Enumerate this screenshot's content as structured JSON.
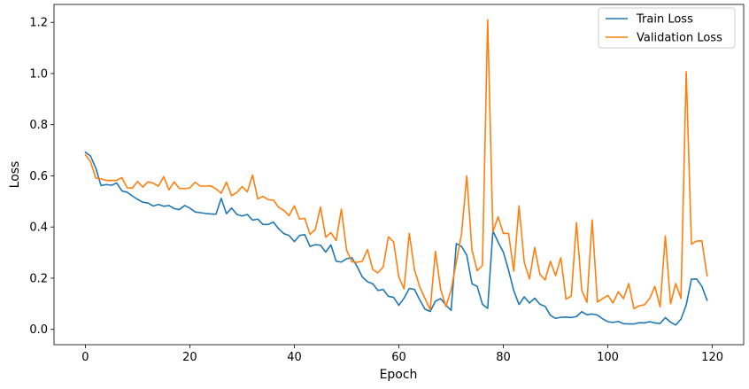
{
  "chart_data": {
    "type": "line",
    "xlabel": "Epoch",
    "ylabel": "Loss",
    "xlim": [
      -6,
      126
    ],
    "ylim": [
      -0.06,
      1.27
    ],
    "xticks": [
      0,
      20,
      40,
      60,
      80,
      100,
      120
    ],
    "yticks": [
      0.0,
      0.2,
      0.4,
      0.6,
      0.8,
      1.0,
      1.2
    ],
    "legend_position": "top-right",
    "grid": false,
    "series": [
      {
        "name": "Train Loss",
        "color": "#1f77b4",
        "values": [
          0.693,
          0.677,
          0.63,
          0.562,
          0.566,
          0.563,
          0.572,
          0.541,
          0.536,
          0.521,
          0.508,
          0.497,
          0.494,
          0.482,
          0.488,
          0.481,
          0.484,
          0.472,
          0.468,
          0.484,
          0.474,
          0.459,
          0.456,
          0.453,
          0.451,
          0.45,
          0.512,
          0.452,
          0.474,
          0.449,
          0.443,
          0.449,
          0.427,
          0.431,
          0.41,
          0.41,
          0.419,
          0.393,
          0.374,
          0.367,
          0.343,
          0.367,
          0.37,
          0.324,
          0.331,
          0.329,
          0.302,
          0.33,
          0.266,
          0.263,
          0.276,
          0.28,
          0.246,
          0.205,
          0.186,
          0.178,
          0.152,
          0.156,
          0.129,
          0.125,
          0.094,
          0.122,
          0.16,
          0.156,
          0.115,
          0.079,
          0.07,
          0.11,
          0.12,
          0.095,
          0.074,
          0.335,
          0.324,
          0.29,
          0.178,
          0.168,
          0.098,
          0.082,
          0.385,
          0.341,
          0.302,
          0.231,
          0.151,
          0.097,
          0.127,
          0.103,
          0.122,
          0.098,
          0.09,
          0.055,
          0.043,
          0.047,
          0.048,
          0.046,
          0.05,
          0.069,
          0.057,
          0.06,
          0.056,
          0.041,
          0.03,
          0.027,
          0.031,
          0.022,
          0.021,
          0.021,
          0.026,
          0.025,
          0.03,
          0.025,
          0.023,
          0.046,
          0.028,
          0.017,
          0.04,
          0.095,
          0.196,
          0.197,
          0.168,
          0.113
        ]
      },
      {
        "name": "Validation Loss",
        "color": "#ff7f0e",
        "values": [
          0.683,
          0.655,
          0.591,
          0.588,
          0.582,
          0.582,
          0.582,
          0.593,
          0.553,
          0.552,
          0.578,
          0.556,
          0.577,
          0.571,
          0.56,
          0.597,
          0.545,
          0.576,
          0.551,
          0.55,
          0.553,
          0.575,
          0.56,
          0.56,
          0.561,
          0.549,
          0.532,
          0.575,
          0.522,
          0.535,
          0.558,
          0.538,
          0.603,
          0.51,
          0.52,
          0.507,
          0.505,
          0.477,
          0.465,
          0.444,
          0.483,
          0.431,
          0.434,
          0.371,
          0.39,
          0.478,
          0.36,
          0.378,
          0.347,
          0.47,
          0.31,
          0.264,
          0.262,
          0.266,
          0.312,
          0.234,
          0.221,
          0.244,
          0.362,
          0.342,
          0.204,
          0.158,
          0.375,
          0.232,
          0.166,
          0.121,
          0.077,
          0.305,
          0.157,
          0.089,
          0.154,
          0.263,
          0.373,
          0.6,
          0.31,
          0.229,
          0.25,
          1.21,
          0.381,
          0.44,
          0.375,
          0.375,
          0.227,
          0.483,
          0.262,
          0.197,
          0.32,
          0.215,
          0.193,
          0.266,
          0.21,
          0.28,
          0.118,
          0.13,
          0.417,
          0.153,
          0.105,
          0.428,
          0.107,
          0.12,
          0.133,
          0.103,
          0.147,
          0.12,
          0.179,
          0.081,
          0.092,
          0.096,
          0.12,
          0.168,
          0.088,
          0.365,
          0.1,
          0.179,
          0.121,
          1.007,
          0.333,
          0.345,
          0.346,
          0.208
        ]
      }
    ]
  }
}
